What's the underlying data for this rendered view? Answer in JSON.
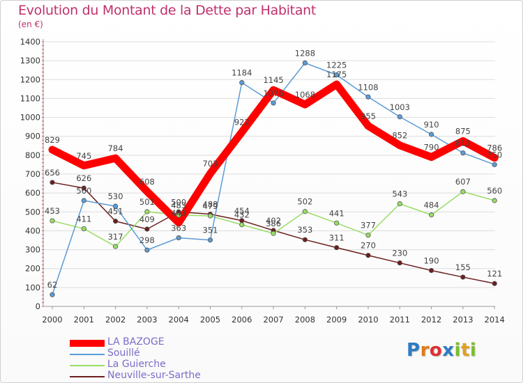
{
  "header": {
    "title": "Evolution du Montant de la Dette par Habitant",
    "subtitle": "(en €)"
  },
  "brand": {
    "text": "Proxiti",
    "letters": [
      "P",
      "r",
      "o",
      "x",
      "i",
      "t",
      "i"
    ]
  },
  "colors": {
    "title": "#c0306c",
    "grid": "#dddddd",
    "LA BAZOGE": "#ff0000",
    "Souillé": "#5b9bd5",
    "La Guierche": "#99dd66",
    "Neuville-sur-Sarthe": "#6b1e1e"
  },
  "chart_data": {
    "type": "line",
    "title": "Evolution du Montant de la Dette par Habitant",
    "ylabel": "(en €)",
    "xlabel": "",
    "ylim": [
      0,
      1400
    ],
    "yticks": [
      0,
      100,
      200,
      300,
      400,
      500,
      600,
      700,
      800,
      900,
      1000,
      1100,
      1200,
      1300,
      1400
    ],
    "x": [
      "2000",
      "2001",
      "2002",
      "2003",
      "2004",
      "2005",
      "2006",
      "2007",
      "2008",
      "2009",
      "2010",
      "2011",
      "2012",
      "2013",
      "2014"
    ],
    "grid": true,
    "legend": "bottom-left",
    "series": [
      {
        "name": "LA BAZOGE",
        "color": "#ff0000",
        "values": [
          829,
          745,
          784,
          608,
          443,
          703,
          922,
          1145,
          1068,
          1175,
          955,
          852,
          790,
          875,
          786
        ]
      },
      {
        "name": "Souillé",
        "color": "#5b9bd5",
        "values": [
          62,
          560,
          530,
          298,
          363,
          351,
          1184,
          1076,
          1288,
          1225,
          1108,
          1003,
          910,
          812,
          750
        ]
      },
      {
        "name": "La Guierche",
        "color": "#99dd66",
        "values": [
          453,
          411,
          317,
          501,
          483,
          479,
          432,
          386,
          502,
          441,
          377,
          543,
          484,
          607,
          560
        ]
      },
      {
        "name": "Neuville-sur-Sarthe",
        "color": "#6b1e1e",
        "values": [
          656,
          626,
          451,
          409,
          500,
          488,
          454,
          402,
          353,
          311,
          270,
          230,
          190,
          155,
          121
        ]
      }
    ]
  }
}
